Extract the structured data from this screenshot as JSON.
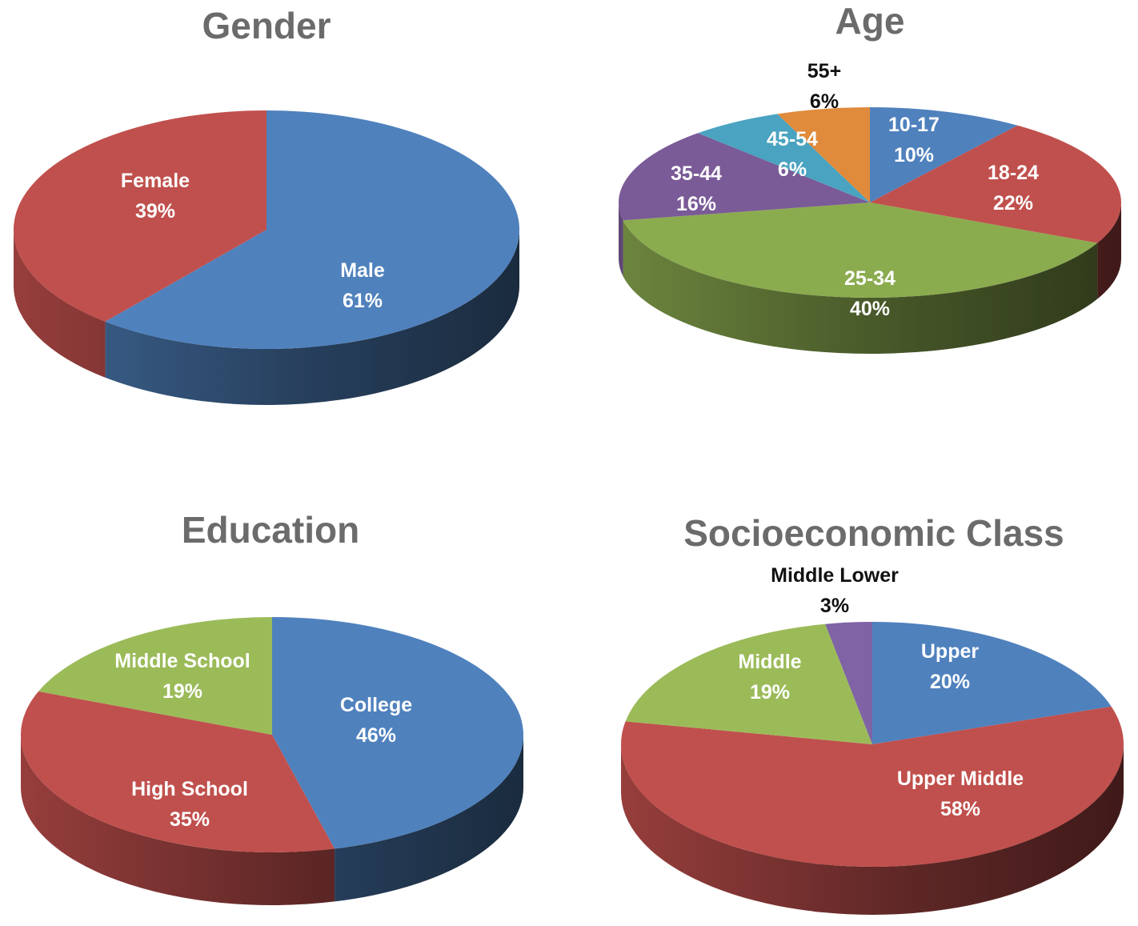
{
  "chart_data": [
    {
      "type": "pie",
      "title": "Gender",
      "slices": [
        {
          "label": "Male",
          "value": 61,
          "value_label": "61%",
          "color": "#4f81bd"
        },
        {
          "label": "Female",
          "value": 39,
          "value_label": "39%",
          "color": "#c0504d"
        }
      ]
    },
    {
      "type": "pie",
      "title": "Age",
      "slices": [
        {
          "label": "10-17",
          "value": 10,
          "value_label": "10%",
          "color": "#4f81bd"
        },
        {
          "label": "18-24",
          "value": 22,
          "value_label": "22%",
          "color": "#c0504d"
        },
        {
          "label": "25-34",
          "value": 40,
          "value_label": "40%",
          "color": "#8bab4f"
        },
        {
          "label": "35-44",
          "value": 16,
          "value_label": "16%",
          "color": "#7a5a97"
        },
        {
          "label": "45-54",
          "value": 6,
          "value_label": "6%",
          "color": "#4aa3c0"
        },
        {
          "label": "55+",
          "value": 6,
          "value_label": "6%",
          "color": "#e08a3c"
        }
      ]
    },
    {
      "type": "pie",
      "title": "Education",
      "slices": [
        {
          "label": "College",
          "value": 46,
          "value_label": "46%",
          "color": "#4f81bd"
        },
        {
          "label": "High School",
          "value": 35,
          "value_label": "35%",
          "color": "#c0504d"
        },
        {
          "label": "Middle School",
          "value": 19,
          "value_label": "19%",
          "color": "#9bbb59"
        }
      ]
    },
    {
      "type": "pie",
      "title": "Socioeconomic Class",
      "slices": [
        {
          "label": "Upper",
          "value": 20,
          "value_label": "20%",
          "color": "#4f81bd"
        },
        {
          "label": "Upper Middle",
          "value": 58,
          "value_label": "58%",
          "color": "#c0504d"
        },
        {
          "label": "Middle",
          "value": 19,
          "value_label": "19%",
          "color": "#9bbb59"
        },
        {
          "label": "Middle Lower",
          "value": 3,
          "value_label": "3%",
          "color": "#7f63a5"
        }
      ]
    }
  ]
}
